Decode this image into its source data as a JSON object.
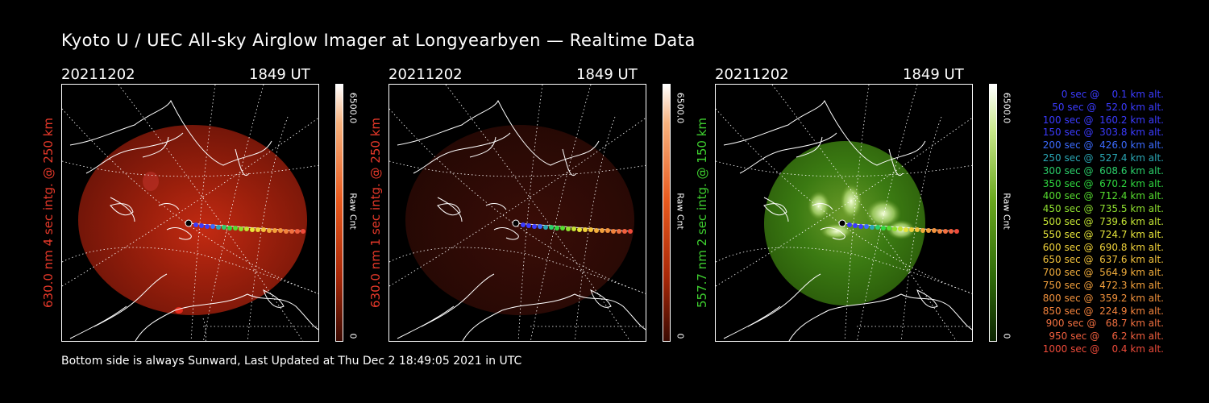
{
  "title": "Kyoto U / UEC All-sky Airglow Imager at Longyearbyen — Realtime Data",
  "footer": "Bottom side is always Sunward, Last Updated at Thu Dec  2 18:49:05 2021 in UTC",
  "panels": [
    {
      "date": "20211202",
      "time": "1849 UT",
      "ylabel": "630.0 nm 4 sec intg. @ 250 km",
      "label_color": "#e8392a",
      "cbar_max": "6500.0",
      "cbar_min": "0",
      "cbar_unit": "Raw Cnt",
      "cbar_color": "#e85a1e"
    },
    {
      "date": "20211202",
      "time": "1849 UT",
      "ylabel": "630.0 nm 1 sec intg. @ 250 km",
      "label_color": "#e8392a",
      "cbar_max": "6500.0",
      "cbar_min": "0",
      "cbar_unit": "Raw Cnt",
      "cbar_color": "#e85a1e"
    },
    {
      "date": "20211202",
      "time": "1849 UT",
      "ylabel": "557.7 nm 2 sec intg. @ 150 km",
      "label_color": "#3ecf2f",
      "cbar_max": "6500.0",
      "cbar_min": "0",
      "cbar_unit": "Raw Cnt",
      "cbar_color": "#5aa91a"
    }
  ],
  "legend": [
    {
      "text": "0 sec @    0.1 km alt.",
      "color": "#3b3bff"
    },
    {
      "text": "50 sec @   52.0 km alt.",
      "color": "#3b3bff"
    },
    {
      "text": "100 sec @  160.2 km alt.",
      "color": "#3b3bff"
    },
    {
      "text": "150 sec @  303.8 km alt.",
      "color": "#3b3bff"
    },
    {
      "text": "200 sec @  426.0 km alt.",
      "color": "#3b6bff"
    },
    {
      "text": "250 sec @  527.4 km alt.",
      "color": "#2aa7b5"
    },
    {
      "text": "300 sec @  608.6 km alt.",
      "color": "#2bd06a"
    },
    {
      "text": "350 sec @  670.2 km alt.",
      "color": "#2fd83f"
    },
    {
      "text": "400 sec @  712.4 km alt.",
      "color": "#56dd2f"
    },
    {
      "text": "450 sec @  735.5 km alt.",
      "color": "#8fe02f"
    },
    {
      "text": "500 sec @  739.6 km alt.",
      "color": "#c4e434"
    },
    {
      "text": "550 sec @  724.7 km alt.",
      "color": "#e6e43a"
    },
    {
      "text": "600 sec @  690.8 km alt.",
      "color": "#f0d23a"
    },
    {
      "text": "650 sec @  637.6 km alt.",
      "color": "#f2c23c"
    },
    {
      "text": "700 sec @  564.9 km alt.",
      "color": "#f2ad3c"
    },
    {
      "text": "750 sec @  472.3 km alt.",
      "color": "#f2a03c"
    },
    {
      "text": "800 sec @  359.2 km alt.",
      "color": "#f2923c"
    },
    {
      "text": "850 sec @  224.9 km alt.",
      "color": "#f2823c"
    },
    {
      "text": "900 sec @   68.7 km alt.",
      "color": "#f27040"
    },
    {
      "text": "950 sec @    6.2 km alt.",
      "color": "#f05f3e"
    },
    {
      "text": "1000 sec @    0.4 km alt.",
      "color": "#ee4b3a"
    }
  ]
}
